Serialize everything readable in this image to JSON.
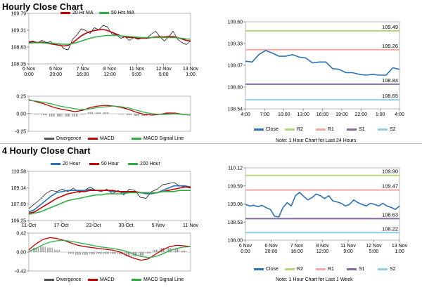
{
  "sections": {
    "hourly_title": "Hourly Close Chart",
    "four_hourly_title": "4 Hourly Close Chart"
  },
  "chart_data": [
    {
      "id": "hourly_price",
      "type": "line",
      "title": "",
      "x_labels": [
        [
          "6 Nov",
          "0:00"
        ],
        [
          "6 Nov",
          "20:00"
        ],
        [
          "7 Nov",
          "16:00"
        ],
        [
          "8 Nov",
          "12:00"
        ],
        [
          "11 Nov",
          "9:00"
        ],
        [
          "12 Nov",
          "5:00"
        ],
        [
          "13 Nov",
          "1:00"
        ]
      ],
      "y_ticks": [
        "109.79",
        "109.31",
        "108.83",
        "108.35"
      ],
      "ylim": [
        108.35,
        109.79
      ],
      "legend": [
        "20 Hr MA",
        "50 Hrs MA"
      ],
      "series": [
        {
          "name": "Close",
          "color": "#000000",
          "values": [
            108.98,
            109.0,
            108.95,
            109.02,
            108.96,
            108.98,
            108.9,
            108.93,
            108.78,
            108.75,
            109.05,
            109.18,
            109.35,
            109.3,
            109.22,
            109.38,
            109.32,
            109.45,
            109.4,
            109.2,
            109.18,
            109.08,
            109.12,
            109.02,
            109.1,
            109.05,
            109.1,
            109.08,
            109.2,
            109.28,
            109.12,
            109.0,
            109.12,
            109.28,
            109.05,
            108.96,
            108.9,
            109.0
          ]
        },
        {
          "name": "20 Hr MA",
          "color": "#c00000",
          "values": [
            108.96,
            108.98,
            108.96,
            108.97,
            108.94,
            108.92,
            108.9,
            108.88,
            108.86,
            108.88,
            108.95,
            109.05,
            109.15,
            109.22,
            109.27,
            109.3,
            109.32,
            109.33,
            109.3,
            109.25,
            109.2,
            109.15,
            109.12,
            109.1,
            109.1,
            109.08,
            109.08,
            109.08,
            109.1,
            109.12,
            109.12,
            109.12,
            109.13,
            109.13,
            109.1,
            109.06,
            109.02,
            109.0
          ]
        },
        {
          "name": "50 Hrs MA",
          "color": "#2eaf46",
          "values": [
            108.94,
            108.95,
            108.95,
            108.95,
            108.94,
            108.94,
            108.93,
            108.92,
            108.91,
            108.91,
            108.93,
            108.96,
            109.0,
            109.04,
            109.08,
            109.11,
            109.13,
            109.15,
            109.16,
            109.16,
            109.16,
            109.15,
            109.14,
            109.13,
            109.12,
            109.11,
            109.1,
            109.1,
            109.1,
            109.1,
            109.1,
            109.1,
            109.1,
            109.1,
            109.09,
            109.08,
            109.06,
            109.05
          ]
        }
      ]
    },
    {
      "id": "hourly_macd",
      "type": "line",
      "y_ticks": [
        "0.25",
        "0.00",
        "-0.25"
      ],
      "ylim": [
        -0.25,
        0.25
      ],
      "legend": [
        "Divergence",
        "MACD",
        "MACD Signal Line"
      ],
      "series": [
        {
          "name": "MACD",
          "color": "#c00000",
          "values": [
            0.2,
            0.17,
            0.14,
            0.1,
            0.07,
            0.05,
            0.03,
            0.05,
            0.09,
            0.11,
            0.12,
            0.11,
            0.09,
            0.06,
            0.02,
            -0.01,
            -0.02,
            -0.01,
            0.01,
            0.01,
            -0.01,
            -0.02
          ]
        },
        {
          "name": "MACD Signal Line",
          "color": "#2eaf46",
          "values": [
            0.19,
            0.18,
            0.16,
            0.14,
            0.11,
            0.09,
            0.07,
            0.06,
            0.07,
            0.09,
            0.1,
            0.11,
            0.1,
            0.08,
            0.05,
            0.02,
            0.0,
            -0.01,
            -0.01,
            0.0,
            -0.01,
            -0.02
          ]
        },
        {
          "name": "Divergence",
          "color": "#555555",
          "values": [
            0.01,
            -0.01,
            -0.02,
            -0.04,
            -0.04,
            -0.04,
            -0.04,
            -0.01,
            0.02,
            0.02,
            0.02,
            0.0,
            -0.01,
            -0.02,
            -0.03,
            -0.03,
            -0.02,
            0.0,
            0.02,
            0.01,
            0.0,
            0.0
          ]
        }
      ]
    },
    {
      "id": "hourly_pivot",
      "type": "line",
      "title": "",
      "x_labels": [
        "4:00",
        "7:00",
        "10:00",
        "13:00",
        "16:00",
        "19:00",
        "22:00",
        "1:00",
        "4:00"
      ],
      "y_ticks": [
        "109.60",
        "109.33",
        "109.07",
        "108.80",
        "108.54"
      ],
      "ylim": [
        108.54,
        109.6
      ],
      "levels": [
        {
          "name": "R2",
          "value": 109.49,
          "label": "109.49",
          "color": "#b3d57b"
        },
        {
          "name": "R1",
          "value": 109.26,
          "label": "109.26",
          "color": "#f2a6a6"
        },
        {
          "name": "S1",
          "value": 108.84,
          "label": "108.84",
          "color": "#7f6aa3"
        },
        {
          "name": "S2",
          "value": 108.65,
          "label": "108.65",
          "color": "#8fcde9"
        }
      ],
      "legend": [
        "Close",
        "R2",
        "R1",
        "S1",
        "S2"
      ],
      "note": "Note: 1 Hour Chart for Last 24 Hours",
      "series": [
        {
          "name": "Close",
          "color": "#2a72b8",
          "values": [
            109.12,
            109.11,
            109.2,
            109.25,
            109.22,
            109.18,
            109.18,
            109.2,
            109.17,
            109.16,
            109.1,
            109.11,
            109.11,
            109.03,
            109.02,
            108.98,
            108.98,
            108.96,
            108.95,
            108.96,
            108.95,
            108.95,
            109.04,
            109.02
          ]
        }
      ]
    },
    {
      "id": "four_hourly_price",
      "type": "line",
      "x_labels": [
        "11-Oct",
        "17-Oct",
        "23-Oct",
        "30-Oct",
        "5-Nov",
        "11-Nov"
      ],
      "y_ticks": [
        "110.58",
        "109.14",
        "107.69",
        "106.25"
      ],
      "ylim": [
        106.25,
        110.58
      ],
      "legend": [
        "20 Hour",
        "50 Hour",
        "200 Hour"
      ],
      "series": [
        {
          "name": "Close",
          "color": "#000000",
          "values": [
            107.3,
            107.7,
            108.1,
            108.6,
            108.9,
            108.8,
            109.0,
            108.8,
            109.1,
            108.7,
            108.9,
            109.2,
            108.9,
            108.8,
            109.0,
            108.6,
            108.9,
            108.5,
            109.0,
            108.9,
            108.3,
            108.2,
            108.8,
            109.0,
            109.4,
            109.5,
            109.6,
            109.3,
            109.2,
            109.1
          ]
        },
        {
          "name": "20 Hour",
          "color": "#2a72b8",
          "values": [
            107.0,
            107.2,
            107.6,
            108.0,
            108.4,
            108.7,
            108.8,
            108.9,
            108.9,
            108.9,
            108.9,
            109.0,
            108.9,
            108.9,
            108.9,
            108.8,
            108.8,
            108.7,
            108.7,
            108.8,
            108.7,
            108.6,
            108.6,
            108.7,
            108.9,
            109.1,
            109.3,
            109.3,
            109.3,
            109.2
          ]
        },
        {
          "name": "50 Hour",
          "color": "#c00000",
          "values": [
            106.9,
            107.0,
            107.3,
            107.6,
            107.9,
            108.2,
            108.4,
            108.6,
            108.7,
            108.8,
            108.8,
            108.9,
            108.9,
            108.9,
            108.9,
            108.9,
            108.8,
            108.8,
            108.8,
            108.8,
            108.7,
            108.7,
            108.7,
            108.7,
            108.8,
            108.9,
            109.0,
            109.1,
            109.2,
            109.2
          ]
        },
        {
          "name": "200 Hour",
          "color": "#2eaf46",
          "values": [
            106.8,
            106.9,
            107.0,
            107.2,
            107.4,
            107.6,
            107.8,
            108.0,
            108.1,
            108.2,
            108.3,
            108.4,
            108.5,
            108.5,
            108.6,
            108.6,
            108.6,
            108.6,
            108.7,
            108.7,
            108.7,
            108.7,
            108.7,
            108.7,
            108.8,
            108.8,
            108.8,
            108.9,
            108.9,
            108.9
          ]
        }
      ]
    },
    {
      "id": "four_hourly_macd",
      "type": "line",
      "y_ticks": [
        "0.42",
        "0.00",
        "-0.42"
      ],
      "ylim": [
        -0.42,
        0.42
      ],
      "legend": [
        "Divergence",
        "MACD",
        "MACD Signal Line"
      ],
      "series": [
        {
          "name": "MACD",
          "color": "#c00000",
          "values": [
            0.05,
            0.18,
            0.28,
            0.32,
            0.3,
            0.26,
            0.2,
            0.15,
            0.12,
            0.1,
            0.08,
            0.06,
            0.04,
            0.0,
            -0.08,
            -0.14,
            -0.18,
            -0.15,
            -0.05,
            0.05,
            0.12,
            0.15,
            0.14,
            0.12
          ]
        },
        {
          "name": "MACD Signal Line",
          "color": "#2eaf46",
          "values": [
            0.02,
            0.08,
            0.16,
            0.22,
            0.25,
            0.26,
            0.24,
            0.21,
            0.18,
            0.15,
            0.12,
            0.1,
            0.08,
            0.05,
            0.01,
            -0.05,
            -0.1,
            -0.12,
            -0.1,
            -0.04,
            0.03,
            0.08,
            0.11,
            0.12
          ]
        },
        {
          "name": "Divergence",
          "color": "#555555",
          "values": [
            0.03,
            0.1,
            0.12,
            0.1,
            0.05,
            0.0,
            -0.04,
            -0.06,
            -0.06,
            -0.05,
            -0.04,
            -0.04,
            -0.04,
            -0.05,
            -0.09,
            -0.09,
            -0.08,
            -0.03,
            0.05,
            0.09,
            0.09,
            0.07,
            0.03,
            0.0
          ]
        }
      ]
    },
    {
      "id": "four_hourly_pivot",
      "type": "line",
      "x_labels": [
        [
          "6 Nov",
          "0:00"
        ],
        [
          "6 Nov",
          "20:00"
        ],
        [
          "7 Nov",
          "16:00"
        ],
        [
          "8 Nov",
          "12:00"
        ],
        [
          "11 Nov",
          "9:00"
        ],
        [
          "12 Nov",
          "5:00"
        ],
        [
          "13 Nov",
          "1:00"
        ]
      ],
      "y_ticks": [
        "110.12",
        "109.59",
        "109.06",
        "108.53",
        "108.00"
      ],
      "ylim": [
        108.0,
        110.12
      ],
      "levels": [
        {
          "name": "R2",
          "value": 109.9,
          "label": "109.90",
          "color": "#b3d57b"
        },
        {
          "name": "R1",
          "value": 109.47,
          "label": "109.47",
          "color": "#f2a6a6"
        },
        {
          "name": "S1",
          "value": 108.63,
          "label": "108.63",
          "color": "#7f6aa3"
        },
        {
          "name": "S2",
          "value": 108.22,
          "label": "108.22",
          "color": "#8fcde9"
        }
      ],
      "legend": [
        "Close",
        "R2",
        "R1",
        "S1",
        "S2"
      ],
      "note": "Note: 1 Hour Chart for Last 1 Week",
      "series": [
        {
          "name": "Close",
          "color": "#2a72b8",
          "values": [
            109.05,
            109.0,
            109.02,
            108.98,
            109.02,
            108.95,
            108.9,
            108.7,
            108.68,
            108.95,
            109.1,
            109.0,
            109.3,
            109.4,
            109.28,
            109.18,
            109.25,
            109.35,
            109.3,
            109.22,
            109.3,
            109.15,
            109.12,
            109.08,
            109.0,
            109.05,
            109.18,
            109.1,
            109.05,
            109.0,
            109.08,
            109.05,
            109.0,
            109.08,
            109.0,
            108.96,
            108.9,
            109.0
          ]
        }
      ]
    }
  ]
}
